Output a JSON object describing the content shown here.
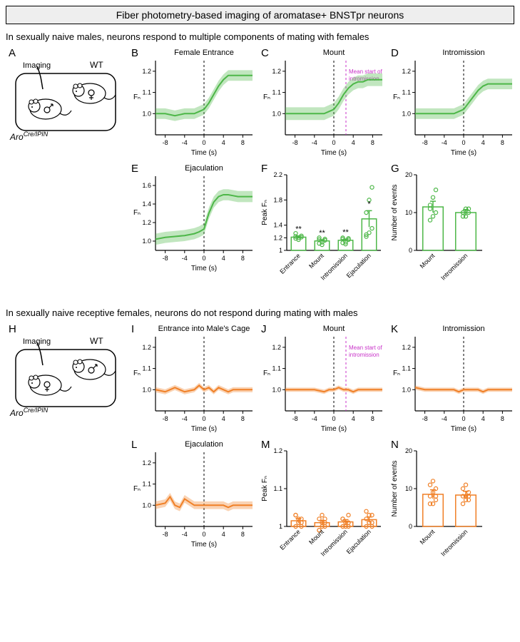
{
  "title": "Fiber photometry-based imaging of aromatase+ BNSTpr neurons",
  "colors": {
    "male": "#4db748",
    "male_fill": "rgba(77,183,72,0.35)",
    "female": "#f08027",
    "female_fill": "rgba(240,128,39,0.35)",
    "axis": "#000000",
    "dash_black": "#000000",
    "dash_magenta": "#c832c8"
  },
  "sections": {
    "male": {
      "header": "In sexually naive males, neurons respond to multiple components of mating with females",
      "diagram": {
        "label": "A",
        "imaging_label": "Imaging",
        "wt_label": "WT",
        "genotype_prefix": "Aro",
        "genotype_sup": "Cre/IPIN"
      },
      "line_ylim": [
        0.9,
        1.25
      ],
      "ejac_ylim": [
        0.9,
        1.7
      ],
      "xlim": [
        -10,
        10
      ],
      "xticks": [
        -8,
        -4,
        0,
        4,
        8
      ],
      "traces": {
        "B": {
          "title": "Female Entrance",
          "yticks": [
            1.0,
            1.1,
            1.2
          ],
          "data": [
            [
              -10,
              1.0
            ],
            [
              -8,
              1.0
            ],
            [
              -6,
              0.99
            ],
            [
              -4,
              1.0
            ],
            [
              -2,
              1.0
            ],
            [
              -1,
              1.01
            ],
            [
              0,
              1.02
            ],
            [
              1,
              1.05
            ],
            [
              2,
              1.09
            ],
            [
              3,
              1.13
            ],
            [
              4,
              1.16
            ],
            [
              5,
              1.18
            ],
            [
              6,
              1.18
            ],
            [
              7,
              1.18
            ],
            [
              8,
              1.18
            ],
            [
              9,
              1.18
            ],
            [
              10,
              1.18
            ]
          ],
          "sem": 0.025
        },
        "C": {
          "title": "Mount",
          "yticks": [
            1.0,
            1.1,
            1.2
          ],
          "data": [
            [
              -10,
              1.0
            ],
            [
              -8,
              1.0
            ],
            [
              -6,
              1.0
            ],
            [
              -4,
              1.0
            ],
            [
              -2,
              1.0
            ],
            [
              -1,
              1.01
            ],
            [
              0,
              1.02
            ],
            [
              1,
              1.05
            ],
            [
              2,
              1.09
            ],
            [
              3,
              1.12
            ],
            [
              4,
              1.14
            ],
            [
              5,
              1.15
            ],
            [
              6,
              1.15
            ],
            [
              7,
              1.16
            ],
            [
              8,
              1.16
            ],
            [
              9,
              1.16
            ],
            [
              10,
              1.16
            ]
          ],
          "sem": 0.03,
          "intromission_x": 2.5,
          "intromission_label": "Mean start of\nintromission"
        },
        "D": {
          "title": "Intromission",
          "yticks": [
            1.0,
            1.1,
            1.2
          ],
          "data": [
            [
              -10,
              1.0
            ],
            [
              -8,
              1.0
            ],
            [
              -6,
              1.0
            ],
            [
              -4,
              1.0
            ],
            [
              -2,
              1.0
            ],
            [
              -1,
              1.01
            ],
            [
              0,
              1.02
            ],
            [
              1,
              1.05
            ],
            [
              2,
              1.08
            ],
            [
              3,
              1.11
            ],
            [
              4,
              1.13
            ],
            [
              5,
              1.14
            ],
            [
              6,
              1.14
            ],
            [
              7,
              1.14
            ],
            [
              8,
              1.14
            ],
            [
              9,
              1.14
            ],
            [
              10,
              1.14
            ]
          ],
          "sem": 0.025
        },
        "E": {
          "title": "Ejaculation",
          "yticks": [
            1.0,
            1.2,
            1.4,
            1.6
          ],
          "data": [
            [
              -10,
              1.02
            ],
            [
              -8,
              1.04
            ],
            [
              -6,
              1.05
            ],
            [
              -4,
              1.06
            ],
            [
              -2,
              1.08
            ],
            [
              -1,
              1.1
            ],
            [
              0,
              1.13
            ],
            [
              1,
              1.3
            ],
            [
              2,
              1.42
            ],
            [
              3,
              1.48
            ],
            [
              4,
              1.5
            ],
            [
              5,
              1.5
            ],
            [
              6,
              1.49
            ],
            [
              7,
              1.48
            ],
            [
              8,
              1.48
            ],
            [
              9,
              1.48
            ],
            [
              10,
              1.48
            ]
          ],
          "sem": 0.06
        }
      },
      "barF": {
        "title": "",
        "label": "F",
        "ylabel": "Peak Fₙ",
        "ylim": [
          1.0,
          2.2
        ],
        "yticks": [
          1.0,
          1.2,
          1.4,
          1.8,
          2.2
        ],
        "cats": [
          "Entrance",
          "Mount",
          "Intromission",
          "Ejaculation"
        ],
        "means": [
          1.21,
          1.15,
          1.16,
          1.5
        ],
        "sems": [
          0.02,
          0.02,
          0.02,
          0.13
        ],
        "sig": [
          "**",
          "**",
          "**",
          "*"
        ],
        "points": [
          [
            1.19,
            1.2,
            1.23,
            1.27,
            1.17,
            1.21,
            1.22
          ],
          [
            1.11,
            1.13,
            1.18,
            1.2,
            1.09,
            1.16,
            1.17
          ],
          [
            1.12,
            1.13,
            1.19,
            1.2,
            1.1,
            1.17,
            1.18
          ],
          [
            1.22,
            1.28,
            1.35,
            1.6,
            1.8,
            2.0,
            1.25
          ]
        ]
      },
      "barG": {
        "label": "G",
        "ylabel": "Number of events",
        "ylim": [
          0,
          20
        ],
        "yticks": [
          0,
          10,
          20
        ],
        "cats": [
          "Mount",
          "Intromission"
        ],
        "means": [
          11.5,
          10
        ],
        "sems": [
          1.5,
          0.8
        ],
        "points": [
          [
            8,
            9,
            10,
            11,
            14,
            16,
            12
          ],
          [
            9,
            9,
            10,
            10,
            11,
            11,
            10
          ]
        ]
      }
    },
    "female": {
      "header": "In sexually naive receptive females, neurons do not respond during mating with males",
      "diagram": {
        "label": "H",
        "imaging_label": "Imaging",
        "wt_label": "WT",
        "genotype_prefix": "Aro",
        "genotype_sup": "Cre/IPIN"
      },
      "line_ylim": [
        0.9,
        1.25
      ],
      "xlim": [
        -10,
        10
      ],
      "xticks": [
        -8,
        -4,
        0,
        4,
        8
      ],
      "traces": {
        "I": {
          "title": "Entrance into Male's Cage",
          "yticks": [
            1.0,
            1.1,
            1.2
          ],
          "data": [
            [
              -10,
              1.0
            ],
            [
              -8,
              0.99
            ],
            [
              -6,
              1.01
            ],
            [
              -4,
              0.99
            ],
            [
              -2,
              1.0
            ],
            [
              -1,
              1.02
            ],
            [
              0,
              1.0
            ],
            [
              1,
              1.01
            ],
            [
              2,
              0.99
            ],
            [
              3,
              1.01
            ],
            [
              4,
              1.0
            ],
            [
              5,
              0.99
            ],
            [
              6,
              1.0
            ],
            [
              7,
              1.0
            ],
            [
              8,
              1.0
            ],
            [
              9,
              1.0
            ],
            [
              10,
              1.0
            ]
          ],
          "sem": 0.012
        },
        "J": {
          "title": "Mount",
          "yticks": [
            1.0,
            1.1,
            1.2
          ],
          "data": [
            [
              -10,
              1.0
            ],
            [
              -8,
              1.0
            ],
            [
              -6,
              1.0
            ],
            [
              -4,
              1.0
            ],
            [
              -2,
              0.99
            ],
            [
              -1,
              1.0
            ],
            [
              0,
              1.0
            ],
            [
              1,
              1.01
            ],
            [
              2,
              1.0
            ],
            [
              3,
              1.0
            ],
            [
              4,
              0.99
            ],
            [
              5,
              1.0
            ],
            [
              6,
              1.0
            ],
            [
              7,
              1.0
            ],
            [
              8,
              1.0
            ],
            [
              9,
              1.0
            ],
            [
              10,
              1.0
            ]
          ],
          "sem": 0.01,
          "intromission_x": 2.5,
          "intromission_label": "Mean start of\nintromission"
        },
        "K": {
          "title": "Intromission",
          "yticks": [
            1.0,
            1.1,
            1.2
          ],
          "data": [
            [
              -10,
              1.01
            ],
            [
              -8,
              1.0
            ],
            [
              -6,
              1.0
            ],
            [
              -4,
              1.0
            ],
            [
              -2,
              1.0
            ],
            [
              -1,
              0.99
            ],
            [
              0,
              1.0
            ],
            [
              1,
              1.0
            ],
            [
              2,
              1.0
            ],
            [
              3,
              1.0
            ],
            [
              4,
              0.99
            ],
            [
              5,
              1.0
            ],
            [
              6,
              1.0
            ],
            [
              7,
              1.0
            ],
            [
              8,
              1.0
            ],
            [
              9,
              1.0
            ],
            [
              10,
              1.0
            ]
          ],
          "sem": 0.01
        },
        "L": {
          "title": "Ejaculation",
          "yticks": [
            1.0,
            1.1,
            1.2
          ],
          "data": [
            [
              -10,
              1.0
            ],
            [
              -8,
              1.01
            ],
            [
              -7,
              1.04
            ],
            [
              -6,
              1.0
            ],
            [
              -5,
              0.99
            ],
            [
              -4,
              1.03
            ],
            [
              -2,
              1.0
            ],
            [
              -1,
              1.0
            ],
            [
              0,
              1.0
            ],
            [
              1,
              1.0
            ],
            [
              2,
              1.0
            ],
            [
              3,
              1.0
            ],
            [
              4,
              1.0
            ],
            [
              5,
              0.99
            ],
            [
              6,
              1.0
            ],
            [
              7,
              1.0
            ],
            [
              8,
              1.0
            ],
            [
              9,
              1.0
            ],
            [
              10,
              1.0
            ]
          ],
          "sem": 0.018
        }
      },
      "barM": {
        "label": "M",
        "ylabel": "Peak Fₙ",
        "ylim": [
          1.0,
          1.2
        ],
        "yticks": [
          1.0,
          1.1,
          1.2
        ],
        "cats": [
          "Entrance",
          "Mount",
          "Intromission",
          "Ejaculation"
        ],
        "means": [
          1.015,
          1.01,
          1.012,
          1.018
        ],
        "sems": [
          0.006,
          0.006,
          0.006,
          0.007
        ],
        "sig": [
          "",
          "",
          "",
          ""
        ],
        "points": [
          [
            1.0,
            1.01,
            1.02,
            1.03,
            1.01,
            1.0,
            1.03,
            1.02,
            1.01
          ],
          [
            0.99,
            1.0,
            1.01,
            1.02,
            1.03,
            1.0,
            0.99,
            1.01,
            1.02
          ],
          [
            1.0,
            1.01,
            1.01,
            1.02,
            1.01,
            1.0,
            1.02,
            1.0,
            1.03
          ],
          [
            1.0,
            1.01,
            1.03,
            1.04,
            1.01,
            1.0,
            1.02,
            1.03,
            1.01
          ]
        ]
      },
      "barN": {
        "label": "N",
        "ylabel": "Number of events",
        "ylim": [
          0,
          20
        ],
        "yticks": [
          0,
          10,
          20
        ],
        "cats": [
          "Mount",
          "Intromission"
        ],
        "means": [
          8.5,
          8.3
        ],
        "sems": [
          1.2,
          1.0
        ],
        "points": [
          [
            6,
            6,
            7,
            8,
            9,
            10,
            11,
            12,
            8
          ],
          [
            6,
            7,
            7,
            8,
            8,
            9,
            10,
            11,
            8
          ]
        ]
      }
    }
  },
  "axis_labels": {
    "x": "Time (s)",
    "fn": "Fₙ"
  }
}
